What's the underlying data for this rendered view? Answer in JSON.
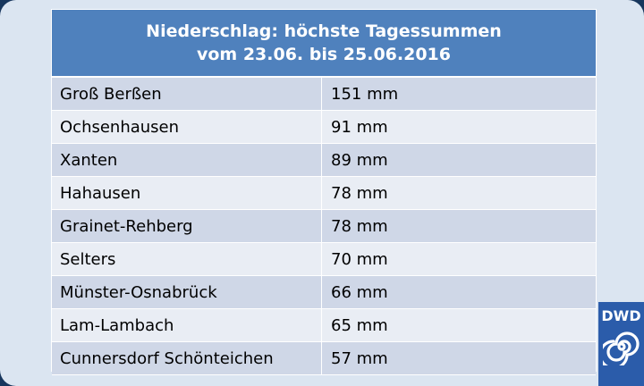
{
  "table": {
    "title_line1": "Niederschlag: höchste Tagessummen",
    "title_line2": "vom 23.06.  bis 25.06.2016",
    "rows": [
      {
        "station": "Groß Berßen",
        "value": "151 mm"
      },
      {
        "station": "Ochsenhausen",
        "value": "91 mm"
      },
      {
        "station": "Xanten",
        "value": "89 mm"
      },
      {
        "station": "Hahausen",
        "value": "78 mm"
      },
      {
        "station": "Grainet-Rehberg",
        "value": "78 mm"
      },
      {
        "station": "Selters",
        "value": "70 mm"
      },
      {
        "station": "Münster-Osnabrück",
        "value": "66 mm"
      },
      {
        "station": "Lam-Lambach",
        "value": "65 mm"
      },
      {
        "station": "Cunnersdorf Schönteichen",
        "value": "57 mm"
      }
    ]
  },
  "logo": {
    "text": "DWD",
    "icon": "spiral-swirl-icon",
    "color": "#2b5caa"
  },
  "colors": {
    "header_bg": "#4f81bd",
    "row_odd": "#cfd7e7",
    "row_even": "#e9edf4",
    "frame": "#17365d"
  }
}
